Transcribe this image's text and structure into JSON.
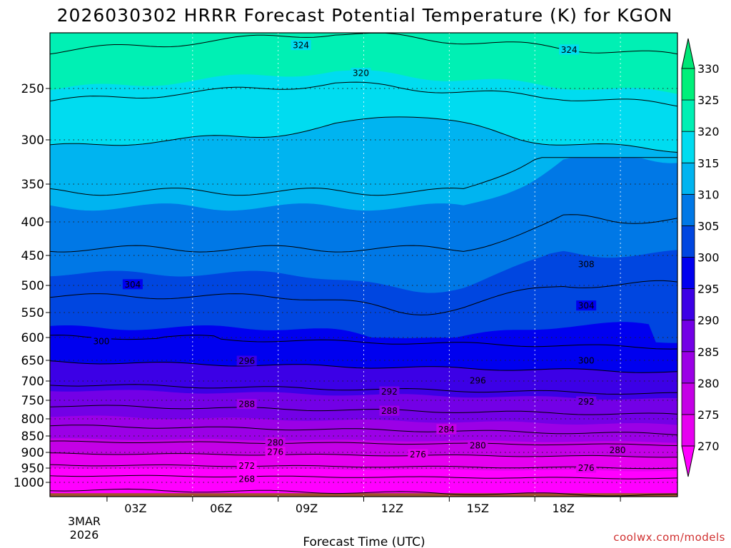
{
  "chart_data": {
    "type": "heatmap",
    "title": "2026030302 HRRR Forecast Potential Temperature (K) for KGON",
    "xlabel": "Forecast Time (UTC)",
    "ylabel": "",
    "credit": "coolwx.com/models",
    "x_hours": [
      0,
      3,
      6,
      9,
      12,
      15,
      18
    ],
    "x_tick_labels": [
      "03Z",
      "06Z",
      "09Z",
      "12Z",
      "15Z",
      "18Z"
    ],
    "x_date_line1": "3MAR",
    "x_date_line2": "2026",
    "xlim_hours": [
      -2,
      20
    ],
    "y_ticks": [
      250,
      300,
      350,
      400,
      450,
      500,
      550,
      600,
      650,
      700,
      750,
      800,
      850,
      900,
      950,
      1000
    ],
    "y_tick_labels": [
      "250",
      "300",
      "350",
      "400",
      "450",
      "500",
      "550",
      "600",
      "650",
      "700",
      "750",
      "800",
      "850",
      "900",
      "950",
      "1000"
    ],
    "ylim_hPa": [
      1025,
      200
    ],
    "colorbar": {
      "levels": [
        270,
        275,
        280,
        285,
        290,
        295,
        300,
        305,
        310,
        315,
        320,
        325,
        330
      ],
      "labels": [
        "270",
        "275",
        "280",
        "285",
        "290",
        "295",
        "300",
        "305",
        "310",
        "315",
        "320",
        "325",
        "330"
      ],
      "colors": [
        "#ff00ff",
        "#e600f0",
        "#c400e6",
        "#9b00e6",
        "#7300e6",
        "#3c00e6",
        "#0000ef",
        "#0046e0",
        "#0078e6",
        "#00b4f0",
        "#00dcf0",
        "#00f0b4",
        "#00f07a"
      ],
      "under_color": "#ff00ff",
      "over_color": "#00e676"
    },
    "isentrope_levels": [
      268,
      272,
      276,
      280,
      284,
      288,
      292,
      296,
      300,
      304,
      308,
      312,
      316,
      320,
      324,
      328
    ],
    "contour_labels": [
      {
        "value": "324",
        "hour": 6.8,
        "p": 211
      },
      {
        "value": "324",
        "hour": 16.2,
        "p": 215
      },
      {
        "value": "320",
        "hour": 8.9,
        "p": 236
      },
      {
        "value": "304",
        "hour": 0.9,
        "p": 498
      },
      {
        "value": "308",
        "hour": 16.8,
        "p": 464
      },
      {
        "value": "304",
        "hour": 16.8,
        "p": 537
      },
      {
        "value": "300",
        "hour": -0.2,
        "p": 608
      },
      {
        "value": "300",
        "hour": 16.8,
        "p": 650
      },
      {
        "value": "296",
        "hour": 4.9,
        "p": 651
      },
      {
        "value": "296",
        "hour": 13.0,
        "p": 698
      },
      {
        "value": "292",
        "hour": 9.9,
        "p": 727
      },
      {
        "value": "292",
        "hour": 16.8,
        "p": 753
      },
      {
        "value": "288",
        "hour": 4.9,
        "p": 760
      },
      {
        "value": "288",
        "hour": 9.9,
        "p": 778
      },
      {
        "value": "284",
        "hour": 11.9,
        "p": 830
      },
      {
        "value": "280",
        "hour": 5.9,
        "p": 870
      },
      {
        "value": "280",
        "hour": 13.0,
        "p": 878
      },
      {
        "value": "280",
        "hour": 17.9,
        "p": 892
      },
      {
        "value": "276",
        "hour": 5.9,
        "p": 898
      },
      {
        "value": "276",
        "hour": 10.9,
        "p": 906
      },
      {
        "value": "276",
        "hour": 16.8,
        "p": 949
      },
      {
        "value": "272",
        "hour": 4.9,
        "p": 942
      },
      {
        "value": "268",
        "hour": 4.9,
        "p": 988
      }
    ]
  }
}
